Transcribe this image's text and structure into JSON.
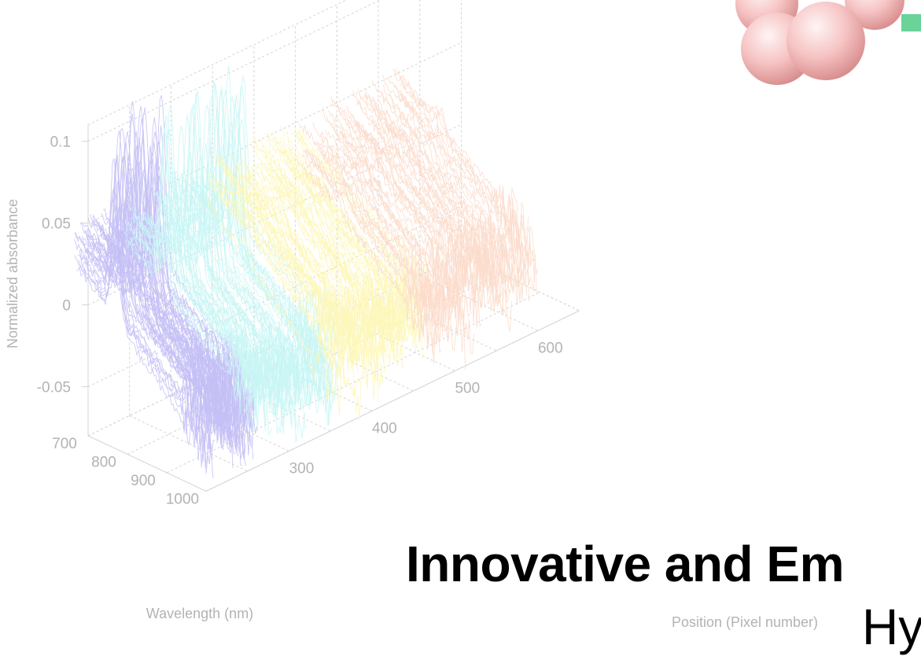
{
  "slide": {
    "title_line1": "Innovative and Em",
    "title_line2": "Hy"
  },
  "chart_data": {
    "type": "line",
    "subtype": "3d-waterfall",
    "xlabel": "Wavelength (nm)",
    "ylabel": "Position (Pixel number)",
    "zlabel": "Normalized absorbance",
    "x_ticks": [
      700,
      800,
      900,
      1000
    ],
    "y_ticks": [
      300,
      400,
      500,
      600
    ],
    "z_ticks": [
      -0.05,
      0,
      0.05,
      0.1
    ],
    "xlim": [
      660,
      1010
    ],
    "ylim": [
      200,
      650
    ],
    "zlim": [
      -0.08,
      0.11
    ],
    "grid": true,
    "series": [
      {
        "color": "#c4c0f6",
        "y_range": [
          200,
          260
        ],
        "peak_wavelength": 760,
        "peak_absorbance": 0.1,
        "count": 60
      },
      {
        "color": "#c8f6f4",
        "y_range": [
          260,
          360
        ],
        "peak_wavelength": 760,
        "peak_absorbance": 0.1,
        "count": 60
      },
      {
        "color": "#fdf7b9",
        "y_range": [
          360,
          470
        ],
        "peak_wavelength": 760,
        "peak_absorbance": 0.04,
        "count": 60
      },
      {
        "color": "#fbdccb",
        "y_range": [
          470,
          600
        ],
        "peak_wavelength": 760,
        "peak_absorbance": 0.05,
        "count": 60
      }
    ]
  },
  "decoration": {
    "sphere_color": "#f4b9b9",
    "accent_color": "#6ad39a"
  }
}
